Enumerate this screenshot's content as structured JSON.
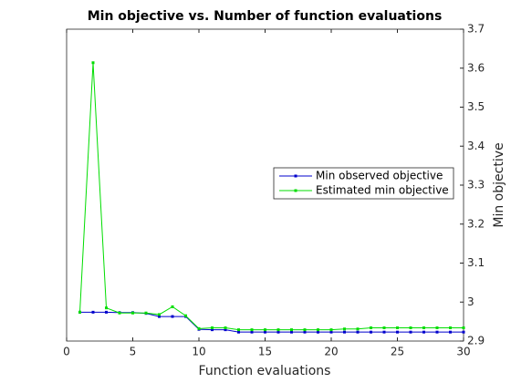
{
  "chart_data": {
    "type": "line",
    "title": "Min objective vs. Number of function evaluations",
    "x_label": "Function evaluations",
    "y_label": "Min objective",
    "x": [
      1,
      2,
      3,
      4,
      5,
      6,
      7,
      8,
      9,
      10,
      11,
      12,
      13,
      14,
      15,
      16,
      17,
      18,
      19,
      20,
      21,
      22,
      23,
      24,
      25,
      26,
      27,
      28,
      29,
      30
    ],
    "series": [
      {
        "name": "Min observed objective",
        "color": "#0000cc",
        "values": [
          2.974,
          2.974,
          2.974,
          2.973,
          2.973,
          2.971,
          2.963,
          2.963,
          2.963,
          2.93,
          2.929,
          2.929,
          2.923,
          2.923,
          2.923,
          2.923,
          2.923,
          2.923,
          2.923,
          2.923,
          2.923,
          2.923,
          2.923,
          2.923,
          2.923,
          2.923,
          2.923,
          2.923,
          2.923,
          2.923
        ]
      },
      {
        "name": "Estimated min objective",
        "color": "#00dd00",
        "values": [
          2.974,
          3.614,
          2.985,
          2.972,
          2.972,
          2.972,
          2.968,
          2.988,
          2.965,
          2.932,
          2.934,
          2.934,
          2.929,
          2.929,
          2.929,
          2.929,
          2.929,
          2.929,
          2.929,
          2.929,
          2.931,
          2.931,
          2.934,
          2.934,
          2.934,
          2.934,
          2.934,
          2.934,
          2.934,
          2.934
        ]
      }
    ],
    "xlim": [
      0,
      30
    ],
    "xticks": [
      0,
      5,
      10,
      15,
      20,
      25,
      30
    ],
    "ylim": [
      2.9,
      3.7
    ],
    "yticks": [
      2.9,
      3,
      3.1,
      3.2,
      3.3,
      3.4,
      3.5,
      3.6,
      3.7
    ],
    "y_axis_side": "right",
    "legend": "east"
  }
}
